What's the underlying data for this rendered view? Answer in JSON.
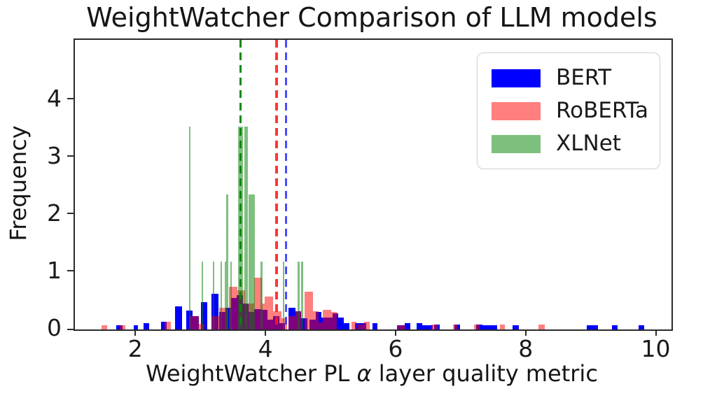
{
  "figure": {
    "title": "WeightWatcher Comparison of LLM models"
  },
  "axes": {
    "xlabel_pre": "WeightWatcher PL ",
    "xlabel_alpha": "α",
    "xlabel_post": " layer quality metric",
    "ylabel": "Frequency"
  },
  "chart_data": {
    "type": "bar",
    "subtype": "overlaid-density-histograms",
    "title": "WeightWatcher Comparison of LLM models",
    "xlabel": "WeightWatcher PL α layer quality metric",
    "ylabel": "Frequency",
    "xlim": [
      1.05,
      10.22
    ],
    "ylim": [
      0,
      5.05
    ],
    "xticks": [
      2,
      4,
      6,
      8,
      10
    ],
    "yticks": [
      0,
      1,
      2,
      3,
      4
    ],
    "grid": false,
    "legend_position": "upper right",
    "legend": [
      "BERT",
      "RoBERTa",
      "XLNet"
    ],
    "series": [
      {
        "name": "BERT",
        "fill": "rgba(0,0,255,1)",
        "legend_swatch": "#0000ff",
        "mean": 4.3,
        "mean_line_color": "rgba(50,50,255,0.88)",
        "bars": [
          [
            1.69,
            1.78,
            0.07
          ],
          [
            1.95,
            2.02,
            0.07
          ],
          [
            2.1,
            2.19,
            0.11
          ],
          [
            2.37,
            2.46,
            0.13
          ],
          [
            2.59,
            2.7,
            0.4
          ],
          [
            2.76,
            2.86,
            0.33
          ],
          [
            2.86,
            2.95,
            0.23
          ],
          [
            2.99,
            3.08,
            0.48
          ],
          [
            3.15,
            3.26,
            0.62
          ],
          [
            3.27,
            3.36,
            0.31
          ],
          [
            3.36,
            3.45,
            0.38
          ],
          [
            3.45,
            3.54,
            0.55
          ],
          [
            3.54,
            3.63,
            0.6
          ],
          [
            3.63,
            3.72,
            0.45
          ],
          [
            3.72,
            3.81,
            0.3
          ],
          [
            3.81,
            3.92,
            0.35
          ],
          [
            3.92,
            4.01,
            0.34
          ],
          [
            4.01,
            4.1,
            0.17
          ],
          [
            4.1,
            4.19,
            0.23
          ],
          [
            4.19,
            4.28,
            0.11
          ],
          [
            4.33,
            4.44,
            0.38
          ],
          [
            4.44,
            4.53,
            0.32
          ],
          [
            4.53,
            4.62,
            0.2
          ],
          [
            4.66,
            4.75,
            0.17
          ],
          [
            4.75,
            4.84,
            0.3
          ],
          [
            4.84,
            4.92,
            0.21
          ],
          [
            4.92,
            5.01,
            0.21
          ],
          [
            5.01,
            5.1,
            0.28
          ],
          [
            5.1,
            5.18,
            0.21
          ],
          [
            5.18,
            5.27,
            0.11
          ],
          [
            5.36,
            5.45,
            0.11
          ],
          [
            5.45,
            5.53,
            0.11
          ],
          [
            5.62,
            5.7,
            0.11
          ],
          [
            6.0,
            6.12,
            0.07
          ],
          [
            6.12,
            6.21,
            0.11
          ],
          [
            6.3,
            6.39,
            0.11
          ],
          [
            6.39,
            6.55,
            0.07
          ],
          [
            6.57,
            6.66,
            0.08
          ],
          [
            6.88,
            6.97,
            0.08
          ],
          [
            7.22,
            7.31,
            0.08
          ],
          [
            7.31,
            7.54,
            0.07
          ],
          [
            7.78,
            7.87,
            0.07
          ],
          [
            8.92,
            9.09,
            0.07
          ],
          [
            9.3,
            9.39,
            0.07
          ],
          [
            9.71,
            9.8,
            0.07
          ]
        ]
      },
      {
        "name": "RoBERTa",
        "fill": "rgba(255,0,0,0.5)",
        "legend_swatch": "#ff7f7f",
        "mean": 4.15,
        "mean_line_color": "rgba(255,25,25,0.88)",
        "bars": [
          [
            1.46,
            1.55,
            0.07
          ],
          [
            1.74,
            1.83,
            0.07
          ],
          [
            2.43,
            2.52,
            0.14
          ],
          [
            2.81,
            2.95,
            0.23
          ],
          [
            2.95,
            3.04,
            0.1
          ],
          [
            3.15,
            3.27,
            0.23
          ],
          [
            3.27,
            3.4,
            0.38
          ],
          [
            3.42,
            3.55,
            0.74
          ],
          [
            3.55,
            3.67,
            0.68
          ],
          [
            3.67,
            3.8,
            0.45
          ],
          [
            3.8,
            3.92,
            0.9
          ],
          [
            3.92,
            3.97,
            0.45
          ],
          [
            3.97,
            4.1,
            0.57
          ],
          [
            4.1,
            4.23,
            0.32
          ],
          [
            4.23,
            4.31,
            0.19
          ],
          [
            4.33,
            4.44,
            0.23
          ],
          [
            4.44,
            4.53,
            0.32
          ],
          [
            4.58,
            4.71,
            0.66
          ],
          [
            4.71,
            4.8,
            0.32
          ],
          [
            4.8,
            4.86,
            0.12
          ],
          [
            4.86,
            4.99,
            0.34
          ],
          [
            4.99,
            5.08,
            0.3
          ],
          [
            5.3,
            5.38,
            0.13
          ],
          [
            5.4,
            5.49,
            0.08
          ],
          [
            5.49,
            5.58,
            0.13
          ],
          [
            6.0,
            6.13,
            0.07
          ],
          [
            6.53,
            6.62,
            0.08
          ],
          [
            6.86,
            6.93,
            0.08
          ],
          [
            7.18,
            7.27,
            0.08
          ],
          [
            7.58,
            7.66,
            0.08
          ],
          [
            8.18,
            8.27,
            0.08
          ]
        ]
      },
      {
        "name": "XLNet",
        "fill": "rgba(0,128,0,0.5)",
        "legend_swatch": "#7dbf7d",
        "mean": 3.6,
        "mean_line_color": "rgba(10,130,10,0.95)",
        "bars": [
          [
            2.8,
            2.83,
            3.54
          ],
          [
            3.0,
            3.02,
            1.18
          ],
          [
            3.17,
            3.19,
            1.18
          ],
          [
            3.29,
            3.31,
            1.18
          ],
          [
            3.35,
            3.37,
            1.18
          ],
          [
            3.38,
            3.41,
            2.36
          ],
          [
            3.44,
            3.46,
            1.18
          ],
          [
            3.56,
            3.63,
            3.54
          ],
          [
            3.66,
            3.71,
            3.54
          ],
          [
            3.72,
            3.77,
            2.36
          ],
          [
            3.77,
            3.82,
            2.36
          ],
          [
            3.9,
            3.93,
            1.18
          ],
          [
            4.25,
            4.27,
            1.18
          ],
          [
            4.47,
            4.5,
            1.18
          ],
          [
            4.53,
            4.56,
            1.18
          ]
        ]
      }
    ],
    "mean_lines": [
      {
        "series": "XLNet",
        "x": 3.6
      },
      {
        "series": "RoBERTa",
        "x": 4.15
      },
      {
        "series": "BERT",
        "x": 4.3
      }
    ]
  }
}
